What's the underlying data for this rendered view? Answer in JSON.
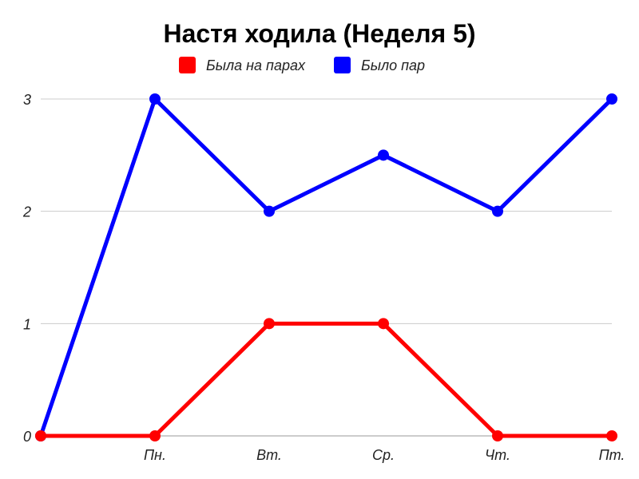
{
  "chart_data": {
    "type": "line",
    "title": "Настя ходила (Неделя 5)",
    "xlabel": "",
    "ylabel": "",
    "categories": [
      "",
      "Пн.",
      "Вт.",
      "Ср.",
      "Чт.",
      "Пт."
    ],
    "ylim": [
      0,
      3
    ],
    "yticks": [
      "0",
      "1",
      "2",
      "3"
    ],
    "grid": true,
    "legend_position": "top",
    "series": [
      {
        "name": "Была на парах",
        "color": "#ff0000",
        "values": [
          0,
          0,
          1,
          1,
          0,
          0
        ]
      },
      {
        "name": "Было пар",
        "color": "#0000ff",
        "values": [
          0,
          3,
          2,
          2.5,
          2,
          3
        ]
      }
    ]
  }
}
